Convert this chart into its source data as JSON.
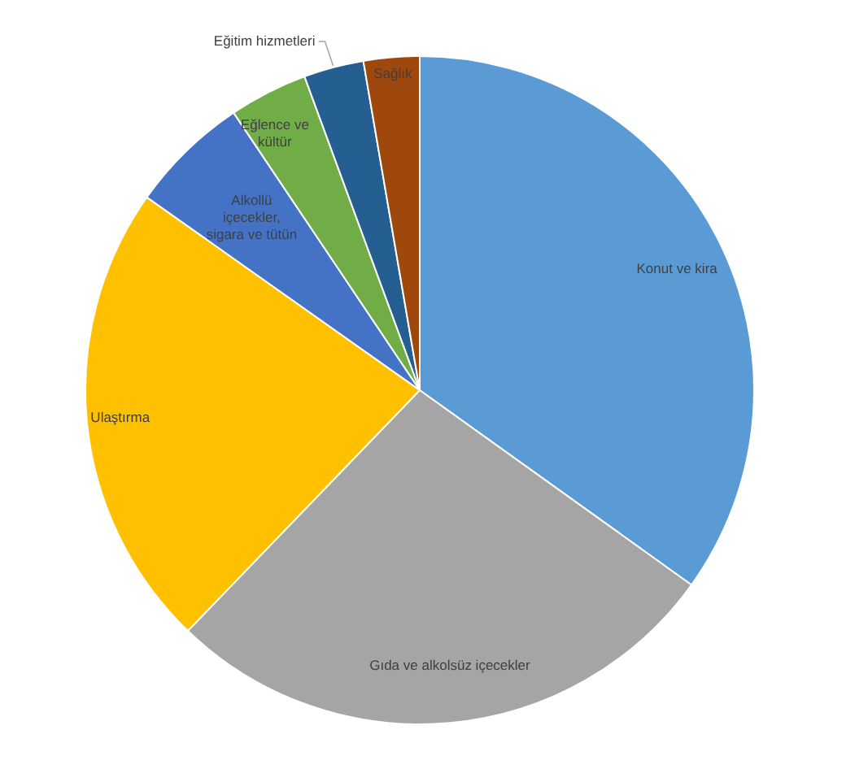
{
  "chart_data": {
    "type": "pie",
    "categories": [
      "Konut ve kira",
      "Gıda ve alkolsüz içecekler",
      "Ulaştırma",
      "Alkollü içecekler, sigara ve tütün",
      "Eğlence ve kültür",
      "Eğitim hizmetleri",
      "Sağlık"
    ],
    "values": [
      34.9,
      27.3,
      22.6,
      5.8,
      3.8,
      2.9,
      2.7
    ],
    "colors": [
      "#5b9bd5",
      "#a5a5a5",
      "#ffc000",
      "#4472c4",
      "#70ad47",
      "#255e91",
      "#9e480e"
    ]
  }
}
